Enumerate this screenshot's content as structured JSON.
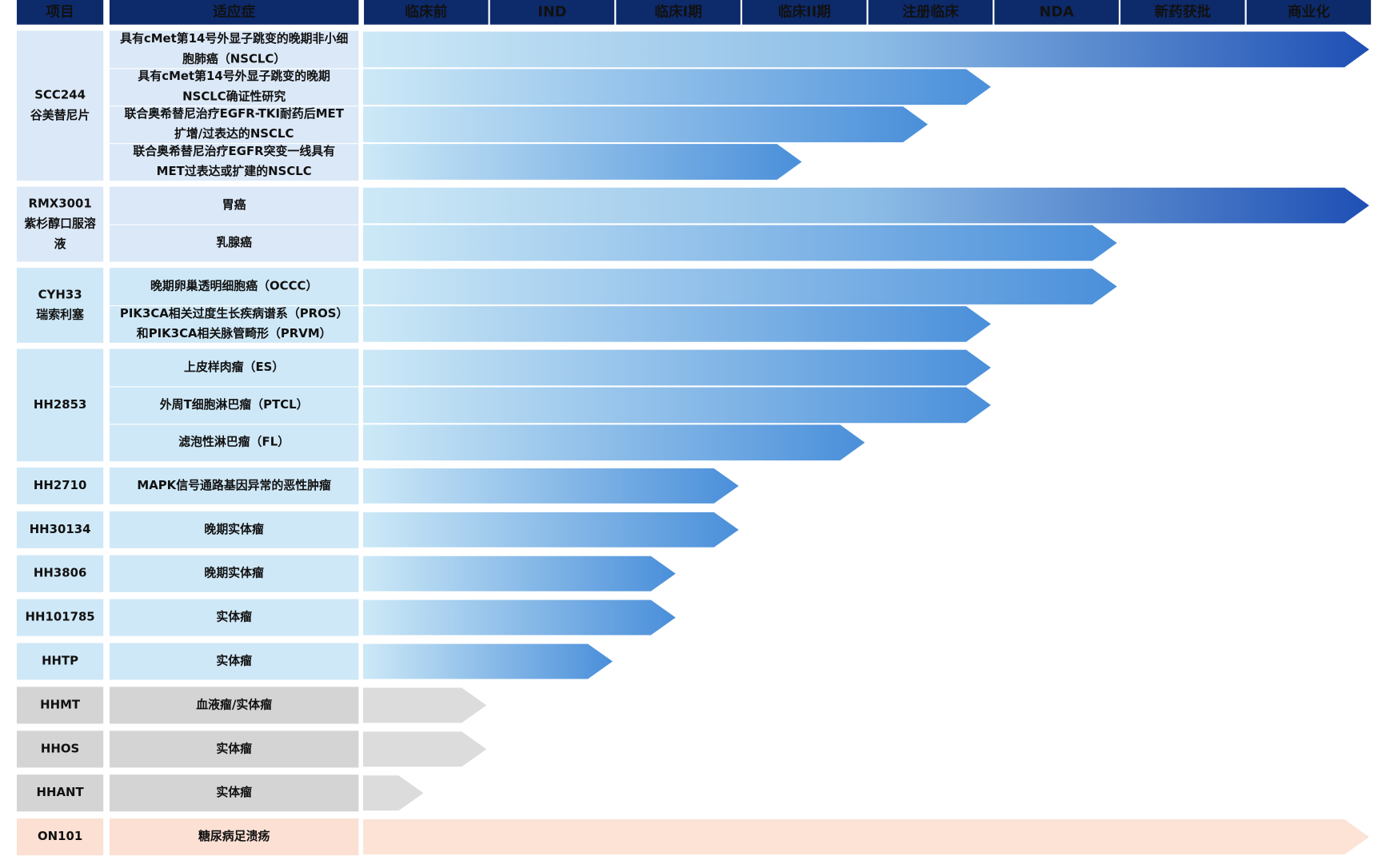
{
  "header": {
    "columns": [
      "项目",
      "适应症"
    ],
    "stages": [
      "临床前",
      "IND",
      "临床I期",
      "临床II期",
      "注册临床",
      "NDA",
      "新药获批",
      "商业化"
    ]
  },
  "groups": [
    {
      "name": [
        "SCC244",
        "谷美替尼片"
      ],
      "name_color": "#c00000",
      "fill": "#dbe8f7",
      "arrow": "blue",
      "items": [
        {
          "indication": [
            "具有cMet第14号外显子跳变的晚期非小细",
            "胞肺癌（NSCLC）"
          ],
          "progress": 8
        },
        {
          "indication": [
            "具有cMet第14号外显子跳变的晚期",
            "NSCLC确证性研究"
          ],
          "progress": 5
        },
        {
          "indication": [
            "联合奥希替尼治疗EGFR-TKI耐药后MET",
            "扩增/过表达的NSCLC"
          ],
          "progress": 4.5
        },
        {
          "indication": [
            "联合奥希替尼治疗EGFR突变一线具有",
            "MET过表达或扩建的NSCLC"
          ],
          "progress": 3.5
        }
      ]
    },
    {
      "name": [
        "RMX3001",
        "紫杉醇口服溶",
        "液"
      ],
      "name_color": "#c00000",
      "fill": "#dbe8f7",
      "arrow": "blue",
      "items": [
        {
          "indication": [
            "胃癌"
          ],
          "progress": 8
        },
        {
          "indication": [
            "乳腺癌"
          ],
          "progress": 6
        }
      ]
    },
    {
      "name": [
        "CYH33",
        "瑞索利塞"
      ],
      "name_color": "#111111",
      "fill": "#cfe8f7",
      "arrow": "blue",
      "items": [
        {
          "indication": [
            "晚期卵巢透明细胞癌（OCCC）"
          ],
          "progress": 6
        },
        {
          "indication": [
            "PIK3CA相关过度生长疾病谱系（PROS）",
            "和PIK3CA相关脉管畸形（PRVM）"
          ],
          "progress": 5
        }
      ]
    },
    {
      "name": [
        "HH2853"
      ],
      "name_color": "#111111",
      "fill": "#cfe8f7",
      "arrow": "blue",
      "items": [
        {
          "indication": [
            "上皮样肉瘤（ES）"
          ],
          "progress": 5
        },
        {
          "indication": [
            "外周T细胞淋巴瘤（PTCL）"
          ],
          "progress": 5
        },
        {
          "indication": [
            "滤泡性淋巴瘤（FL）"
          ],
          "progress": 4
        }
      ]
    },
    {
      "name": [
        "HH2710"
      ],
      "name_color": "#111111",
      "fill": "#cfe8f7",
      "arrow": "blue",
      "items": [
        {
          "indication": [
            "MAPK信号通路基因异常的恶性肿瘤"
          ],
          "progress": 3
        }
      ]
    },
    {
      "name": [
        "HH30134"
      ],
      "name_color": "#111111",
      "fill": "#cfe8f7",
      "arrow": "blue",
      "items": [
        {
          "indication": [
            "晚期实体瘤"
          ],
          "progress": 3
        }
      ]
    },
    {
      "name": [
        "HH3806"
      ],
      "name_color": "#111111",
      "fill": "#cfe8f7",
      "arrow": "blue",
      "items": [
        {
          "indication": [
            "晚期实体瘤"
          ],
          "progress": 2.5
        }
      ]
    },
    {
      "name": [
        "HH101785"
      ],
      "name_color": "#111111",
      "fill": "#cfe8f7",
      "arrow": "blue",
      "items": [
        {
          "indication": [
            "实体瘤"
          ],
          "progress": 2.5
        }
      ]
    },
    {
      "name": [
        "HHTP"
      ],
      "name_color": "#111111",
      "fill": "#cfe8f7",
      "arrow": "blue",
      "items": [
        {
          "indication": [
            "实体瘤"
          ],
          "progress": 2
        }
      ]
    },
    {
      "name": [
        "HHMT"
      ],
      "name_color": "#111111",
      "fill": "#d4d4d4",
      "arrow": "#dcdcdc",
      "items": [
        {
          "indication": [
            "血液瘤/实体瘤"
          ],
          "progress": 1
        }
      ]
    },
    {
      "name": [
        "HHOS"
      ],
      "name_color": "#111111",
      "fill": "#d4d4d4",
      "arrow": "#dcdcdc",
      "items": [
        {
          "indication": [
            "实体瘤"
          ],
          "progress": 1
        }
      ]
    },
    {
      "name": [
        "HHANT"
      ],
      "name_color": "#111111",
      "fill": "#d4d4d4",
      "arrow": "#dcdcdc",
      "items": [
        {
          "indication": [
            "实体瘤"
          ],
          "progress": 0.5
        }
      ]
    },
    {
      "name": [
        "ON101"
      ],
      "name_color": "#111111",
      "fill": "#fbe0d3",
      "arrow": "#fce3d6",
      "items": [
        {
          "indication": [
            "糖尿病足溃疡"
          ],
          "progress": 8
        }
      ]
    }
  ]
}
